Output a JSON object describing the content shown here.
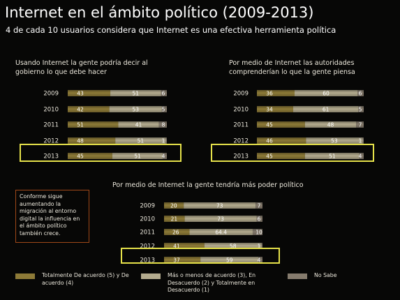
{
  "header": {
    "title": "Internet en el ámbito político (2009-2013)",
    "subtitle": "4 de cada 10 usuarios considera que Internet es una efectiva herramienta política"
  },
  "note": {
    "text": "Conforme sigue aumentando la migración al entorno digital la influencia en el ámbito político también crece."
  },
  "legend": [
    {
      "label": "Totalmente De acuerdo (5) y De acuerdo (4)",
      "color": "#8d7a37"
    },
    {
      "label": "Más o menos de acuerdo (3), En Desacuerdo (2) y Totalmente en Desacuerdo (1)",
      "color": "#b3ab8e"
    },
    {
      "label": "No Sabe",
      "color": "#857b6d"
    }
  ],
  "chart_data": [
    {
      "type": "bar",
      "stacked": true,
      "orientation": "horizontal",
      "title": "Usando Internet la gente podría decir al gobierno lo que debe hacer",
      "categories": [
        "2009",
        "2010",
        "2011",
        "2012",
        "2013"
      ],
      "series": [
        {
          "values": [
            43,
            42,
            51,
            48,
            45
          ]
        },
        {
          "values": [
            51,
            53,
            41,
            51,
            51
          ]
        },
        {
          "values": [
            6,
            5,
            8,
            1,
            4
          ]
        }
      ],
      "value_labels": [
        [
          "43",
          "51",
          "6"
        ],
        [
          "42",
          "53",
          "5"
        ],
        [
          "51",
          "41",
          "8"
        ],
        [
          "48",
          "51",
          "1"
        ],
        [
          "45",
          "51",
          "4"
        ]
      ],
      "highlight": "2013"
    },
    {
      "type": "bar",
      "stacked": true,
      "orientation": "horizontal",
      "title": "Por medio de Internet las autoridades comprenderían lo que la gente piensa",
      "categories": [
        "2009",
        "2010",
        "2011",
        "2012",
        "2013"
      ],
      "series": [
        {
          "values": [
            36,
            34,
            45,
            46,
            45
          ]
        },
        {
          "values": [
            60,
            61,
            48,
            53,
            51
          ]
        },
        {
          "values": [
            6,
            5,
            7,
            1,
            4
          ]
        }
      ],
      "value_labels": [
        [
          "36",
          "60",
          "6"
        ],
        [
          "34",
          "61",
          "5"
        ],
        [
          "45",
          "48",
          "7"
        ],
        [
          "46",
          "53",
          "1"
        ],
        [
          "45",
          "51",
          "4"
        ]
      ],
      "highlight": "2013"
    },
    {
      "type": "bar",
      "stacked": true,
      "orientation": "horizontal",
      "title": "Por medio de Internet la gente tendría más poder político",
      "categories": [
        "2009",
        "2010",
        "2011",
        "2012",
        "2013"
      ],
      "series": [
        {
          "values": [
            20,
            21,
            26,
            41,
            37
          ]
        },
        {
          "values": [
            73,
            73,
            64.4,
            58,
            59
          ]
        },
        {
          "values": [
            7,
            6,
            10,
            1,
            4
          ]
        }
      ],
      "value_labels": [
        [
          "20",
          "73",
          "7"
        ],
        [
          "21",
          "73",
          "6"
        ],
        [
          "26",
          "64.4",
          "10"
        ],
        [
          "41",
          "58",
          "1"
        ],
        [
          "37",
          "59",
          "4"
        ]
      ],
      "highlight": "2013"
    }
  ]
}
